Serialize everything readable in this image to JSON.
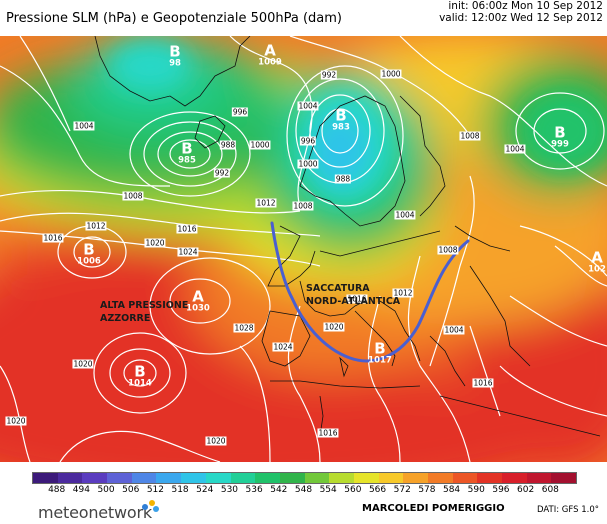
{
  "header": {
    "title": "Pressione SLM (hPa) e Geopotenziale 500hPa (dam)",
    "init": "init: 06:00z Mon 10 Sep 2012",
    "valid": "valid: 12:00z Wed 12 Sep 2012"
  },
  "pressure_centers": [
    {
      "type": "B",
      "value": "98"
    },
    {
      "type": "A",
      "value": "1009"
    },
    {
      "type": "B",
      "value": "985"
    },
    {
      "type": "B",
      "value": "983"
    },
    {
      "type": "B",
      "value": "999"
    },
    {
      "type": "B",
      "value": "1006"
    },
    {
      "type": "A",
      "value": "1030"
    },
    {
      "type": "B",
      "value": "1014"
    },
    {
      "type": "B",
      "value": "1017"
    },
    {
      "type": "A",
      "value": "102"
    }
  ],
  "isobar_labels": [
    "1004",
    "1000",
    "996",
    "992",
    "988",
    "1008",
    "1012",
    "1016",
    "1020",
    "1024",
    "1028",
    "1016",
    "1012",
    "1016",
    "1012",
    "1024",
    "1020",
    "1020",
    "1020",
    "1016",
    "1008",
    "1004",
    "1000",
    "996",
    "992",
    "988",
    "1000",
    "1004",
    "1008",
    "1004",
    "1008",
    "1004",
    "1020",
    "1016"
  ],
  "annotations": {
    "azores": [
      "ALTA PRESSIONE",
      "AZZORRE"
    ],
    "trough": [
      "SACCATURA",
      "NORD-ATLANTICA"
    ]
  },
  "colorbar": {
    "unit": "dam",
    "ticks": [
      "488",
      "494",
      "500",
      "506",
      "512",
      "518",
      "524",
      "530",
      "536",
      "542",
      "548",
      "554",
      "560",
      "566",
      "572",
      "578",
      "584",
      "590",
      "596",
      "602",
      "608"
    ],
    "colors": [
      "#3c1a7a",
      "#4b2a9e",
      "#5a3cbf",
      "#5e62d6",
      "#4f86e6",
      "#3ba8ee",
      "#2fc4e8",
      "#28d8c7",
      "#21cf97",
      "#20c26a",
      "#30b44a",
      "#72c83a",
      "#b7dc2f",
      "#e6e42a",
      "#f7c92a",
      "#f6a229",
      "#f27b27",
      "#ec5626",
      "#e33325",
      "#d81f2a",
      "#c0162e",
      "#a3102f"
    ]
  },
  "footer": {
    "brand": "meteonetwork",
    "label": "MARCOLEDI POMERIGGIO",
    "data_source": "DATI: GFS 1.0°"
  },
  "colors": {
    "trough_line": "#4a5fd0",
    "isobar": "#ffffff",
    "coastline": "#111111"
  }
}
